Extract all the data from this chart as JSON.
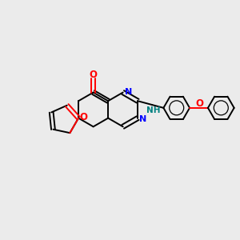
{
  "background_color": "#ebebeb",
  "bond_color": "#000000",
  "n_color": "#0000ff",
  "o_color": "#ff0000",
  "nh_color": "#008080",
  "figsize": [
    3.0,
    3.0
  ],
  "dpi": 100,
  "xlim": [
    0,
    10
  ],
  "ylim": [
    0,
    10
  ]
}
